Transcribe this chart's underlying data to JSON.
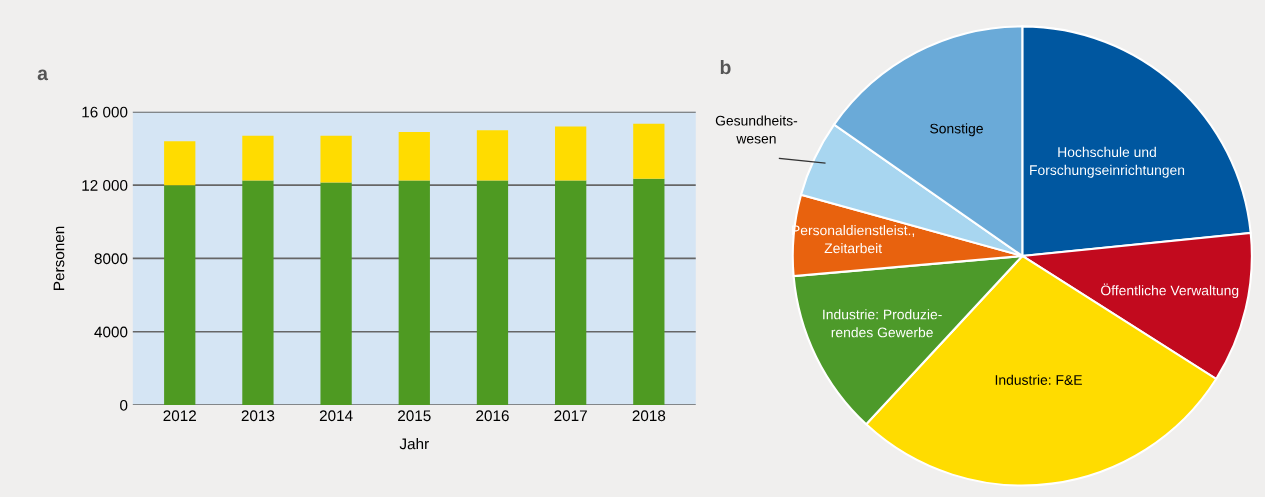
{
  "chart_data": [
    {
      "type": "bar",
      "title": "a",
      "xlabel": "Jahr",
      "ylabel": "Personen",
      "stacked": true,
      "grid": "y",
      "legend": false,
      "categories": [
        "2012",
        "2013",
        "2014",
        "2015",
        "2016",
        "2017",
        "2018"
      ],
      "series": [
        {
          "color": "#4e9a22",
          "values": [
            12000,
            12250,
            12150,
            12250,
            12250,
            12250,
            12350
          ]
        },
        {
          "color": "#ffdc00",
          "values": [
            2400,
            2450,
            2550,
            2650,
            2750,
            2950,
            3000
          ]
        }
      ],
      "ylim": [
        0,
        16000
      ],
      "yticks": [
        0,
        4000,
        8000,
        {
          "value": 12000,
          "label": "12 000"
        },
        {
          "value": 16000,
          "label": "16 000"
        }
      ]
    },
    {
      "type": "pie",
      "title": "b",
      "categories": [
        "Hochschule und\nForschungseinrichtungen",
        "Öffentliche Verwaltung",
        "Industrie: F&E",
        "Industrie: Produzie-\nrendes Gewerbe",
        "Personaldienstleist.,\nZeitarbeit",
        "Gesundheits-\nwesen",
        "Sonstige"
      ],
      "values": [
        23.4,
        10.6,
        27.9,
        11.7,
        5.7,
        5.4,
        15.3
      ],
      "colors": [
        "#0057a0",
        "#c20a1e",
        "#ffdc00",
        "#4d9a2a",
        "#e8620e",
        "#a8d6f0",
        "#6aaad8"
      ]
    }
  ]
}
